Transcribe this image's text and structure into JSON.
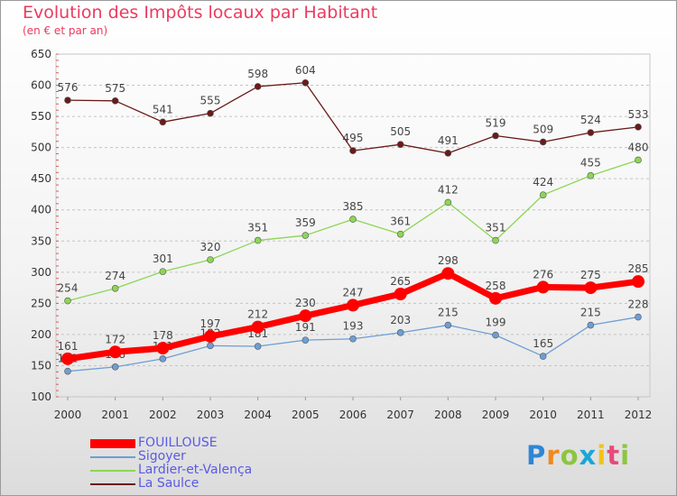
{
  "header": {
    "title": "Evolution des Impôts locaux par Habitant",
    "subtitle": "(en € et par an)"
  },
  "logo": {
    "text": "Proxiti",
    "letters": [
      {
        "ch": "P",
        "color": "#2e86d6"
      },
      {
        "ch": "r",
        "color": "#f08a1a"
      },
      {
        "ch": "o",
        "color": "#8cc63f"
      },
      {
        "ch": "x",
        "color": "#1aa7d6"
      },
      {
        "ch": "i",
        "color": "#f0c419"
      },
      {
        "ch": "t",
        "color": "#e84a7a"
      },
      {
        "ch": "i",
        "color": "#8cc63f"
      }
    ]
  },
  "chart_data": {
    "type": "line",
    "title": "Evolution des Impôts locaux par Habitant",
    "subtitle": "(en € et par an)",
    "xlabel": "",
    "ylabel": "",
    "x": [
      2000,
      2001,
      2002,
      2003,
      2004,
      2005,
      2006,
      2007,
      2008,
      2009,
      2010,
      2011,
      2012
    ],
    "ylim": [
      100,
      650
    ],
    "yticks": [
      100,
      150,
      200,
      250,
      300,
      350,
      400,
      450,
      500,
      550,
      600,
      650
    ],
    "grid": "horizontal dashed",
    "legend_position": "bottom-left",
    "series": [
      {
        "name": "FOUILLOUSE",
        "color": "#ff0000",
        "highlight": true,
        "values": [
          161,
          172,
          178,
          197,
          212,
          230,
          247,
          265,
          298,
          258,
          276,
          275,
          285
        ]
      },
      {
        "name": "Sigoyer",
        "color": "#6e9ed4",
        "highlight": false,
        "values": [
          141,
          148,
          161,
          182,
          181,
          191,
          193,
          203,
          215,
          199,
          165,
          215,
          228
        ]
      },
      {
        "name": "Lardier-et-Valença",
        "color": "#8cd655",
        "highlight": false,
        "values": [
          254,
          274,
          301,
          320,
          351,
          359,
          385,
          361,
          412,
          351,
          424,
          455,
          480
        ]
      },
      {
        "name": "La Saulce",
        "color": "#6a1a1a",
        "highlight": false,
        "values": [
          576,
          575,
          541,
          555,
          598,
          604,
          495,
          505,
          491,
          519,
          509,
          524,
          533
        ]
      }
    ]
  }
}
